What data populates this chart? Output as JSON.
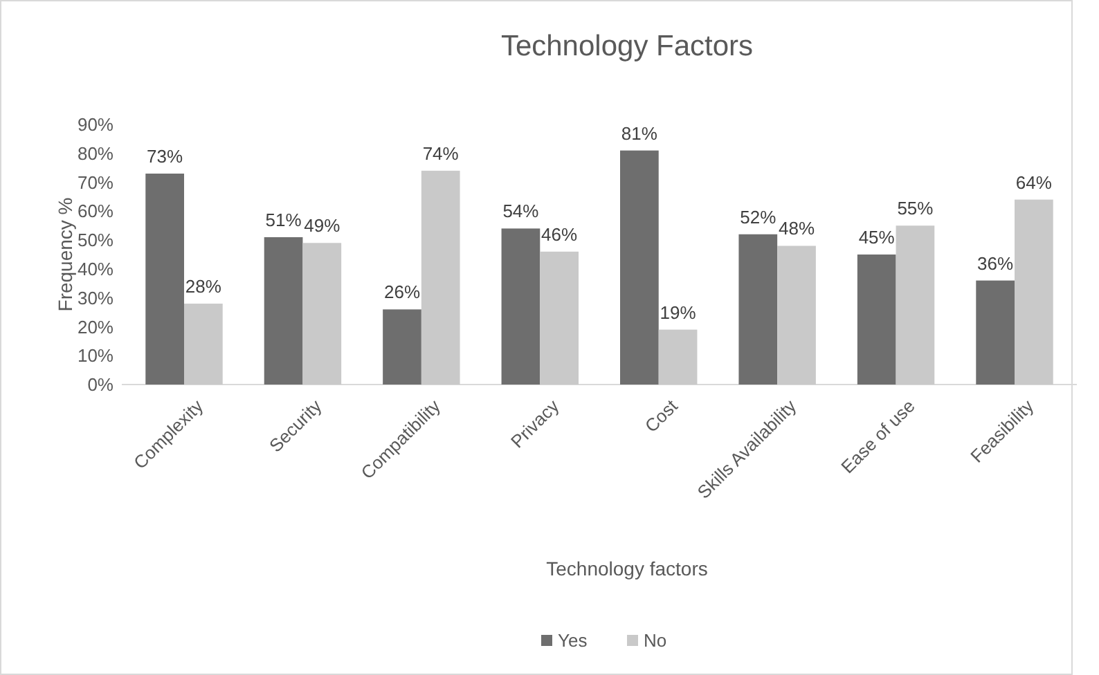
{
  "chart_data": {
    "type": "bar",
    "title": "Technology Factors",
    "xlabel": "Technology factors",
    "ylabel": "Frequency %",
    "categories": [
      "Complexity",
      "Security",
      "Compatibility",
      "Privacy",
      "Cost",
      "Skills Availability",
      "Ease of use",
      "Feasibility"
    ],
    "series": [
      {
        "name": "Yes",
        "color": "#6e6e6e",
        "values": [
          73,
          51,
          26,
          54,
          81,
          52,
          45,
          36
        ],
        "value_labels": [
          "73%",
          "51%",
          "26%",
          "54%",
          "81%",
          "52%",
          "45%",
          "36%"
        ]
      },
      {
        "name": "No",
        "color": "#c9c9c9",
        "values": [
          28,
          49,
          74,
          46,
          19,
          48,
          55,
          64
        ],
        "value_labels": [
          "28%",
          "49%",
          "74%",
          "46%",
          "19%",
          "48%",
          "55%",
          "64%"
        ]
      }
    ],
    "ylim": [
      0,
      90
    ],
    "yticks": [
      {
        "value": 0,
        "label": "0%"
      },
      {
        "value": 10,
        "label": "10%"
      },
      {
        "value": 20,
        "label": "20%"
      },
      {
        "value": 30,
        "label": "30%"
      },
      {
        "value": 40,
        "label": "40%"
      },
      {
        "value": 50,
        "label": "50%"
      },
      {
        "value": 60,
        "label": "60%"
      },
      {
        "value": 70,
        "label": "70%"
      },
      {
        "value": 80,
        "label": "80%"
      },
      {
        "value": 90,
        "label": "90%"
      }
    ],
    "grid": false,
    "legend": "bottom"
  }
}
